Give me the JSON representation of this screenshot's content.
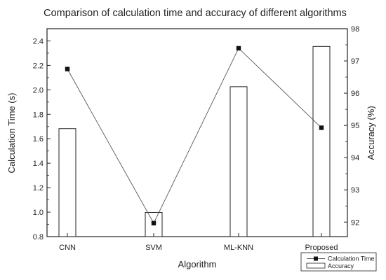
{
  "chart_data": {
    "type": "bar",
    "title": "Comparison of calculation time and accuracy of different algorithms",
    "xlabel": "Algorithm",
    "ylabel_left": "Calculation Time (s)",
    "ylabel_right": "Accuracy (%)",
    "categories": [
      "CNN",
      "SVM",
      "ML-KNN",
      "Proposed"
    ],
    "left_axis": {
      "range": [
        0.8,
        2.5
      ],
      "ticks": [
        "0.8",
        "1.0",
        "1.2",
        "1.4",
        "1.6",
        "1.8",
        "2.0",
        "2.2",
        "2.4"
      ]
    },
    "right_axis": {
      "range": [
        91.55,
        98.0
      ],
      "ticks": [
        "92",
        "93",
        "94",
        "95",
        "96",
        "97",
        "98"
      ]
    },
    "series": [
      {
        "name": "Calculation Time",
        "type": "line",
        "axis": "left",
        "marker": "square",
        "values": [
          2.17,
          0.91,
          2.34,
          1.69
        ]
      },
      {
        "name": "Accuracy",
        "type": "bar",
        "axis": "right",
        "values": [
          94.9,
          92.3,
          96.2,
          97.45
        ]
      }
    ],
    "legend": {
      "position": "bottom-right",
      "entries": [
        "Calculation Time",
        "Accuracy"
      ]
    },
    "grid": false,
    "colors": {
      "line": "#555555",
      "marker": "#111111",
      "bar_fill": "#ffffff",
      "bar_stroke": "#222222",
      "axis": "#222222"
    }
  }
}
